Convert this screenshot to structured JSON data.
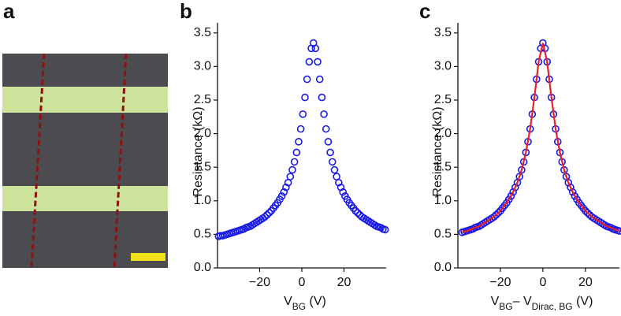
{
  "image_panel": {
    "label": "a"
  },
  "chart_data": [
    {
      "type": "scatter",
      "panel": "b",
      "y_label": "Resistance (kΩ)",
      "x_label_parts": [
        "V",
        "BG",
        " (V)"
      ],
      "xlim": [
        -40,
        40
      ],
      "xticks": [
        {
          "value": -20,
          "label": "−20"
        },
        0,
        20
      ],
      "ylim": [
        0,
        3.65
      ],
      "yticks": [
        {
          "value": 0,
          "label": "0.0"
        },
        0.5,
        {
          "value": 1,
          "label": "1.0"
        },
        1.5,
        {
          "value": 2,
          "label": "2.0"
        },
        2.5,
        {
          "value": 3,
          "label": "3.0"
        },
        3.5
      ],
      "series": [
        {
          "color": "#1a1ae6",
          "mode": "markers",
          "x": [
            -39.5,
            -38.5,
            -37.5,
            -36.5,
            -35.5,
            -34.5,
            -33.5,
            -32.5,
            -31.5,
            -30.5,
            -29.5,
            -28.5,
            -27.5,
            -26.5,
            -25.5,
            -24.5,
            -23.5,
            -22.5,
            -21.5,
            -20.5,
            -19.5,
            -18.5,
            -17.5,
            -16.5,
            -15.5,
            -14.5,
            -13.5,
            -12.5,
            -11.5,
            -10.5,
            -9.5,
            -8.5,
            -7.5,
            -6.5,
            -5.5,
            -4.5,
            -3.5,
            -2.5,
            -1.5,
            -0.5,
            0.5,
            1.5,
            2.5,
            3.5,
            4.5,
            5.5,
            6.5,
            7.5,
            8.5,
            9.5,
            10.5,
            11.5,
            12.5,
            13.5,
            14.5,
            15.5,
            16.5,
            17.5,
            18.5,
            19.5,
            20.5,
            21.5,
            22.5,
            23.5,
            24.5,
            25.5,
            26.5,
            27.5,
            28.5,
            29.5,
            30.5,
            31.5,
            32.5,
            33.5,
            34.5,
            35.5,
            36.5,
            37.5,
            38.5,
            39.5
          ],
          "values": [
            0.47,
            0.48,
            0.48,
            0.49,
            0.5,
            0.51,
            0.52,
            0.53,
            0.54,
            0.55,
            0.56,
            0.57,
            0.58,
            0.6,
            0.61,
            0.62,
            0.64,
            0.66,
            0.68,
            0.7,
            0.72,
            0.74,
            0.76,
            0.79,
            0.82,
            0.85,
            0.89,
            0.93,
            0.97,
            1.02,
            1.07,
            1.13,
            1.2,
            1.27,
            1.36,
            1.46,
            1.58,
            1.72,
            1.88,
            2.07,
            2.29,
            2.54,
            2.81,
            3.07,
            3.27,
            3.35,
            3.27,
            3.07,
            2.81,
            2.54,
            2.29,
            2.07,
            1.88,
            1.72,
            1.58,
            1.46,
            1.36,
            1.27,
            1.2,
            1.13,
            1.07,
            1.02,
            0.97,
            0.93,
            0.89,
            0.85,
            0.82,
            0.79,
            0.76,
            0.74,
            0.72,
            0.7,
            0.68,
            0.66,
            0.64,
            0.62,
            0.61,
            0.6,
            0.58,
            0.57
          ]
        }
      ]
    },
    {
      "type": "scatter",
      "panel": "c",
      "y_label": "Resistance (kΩ)",
      "x_label_parts": [
        "V",
        "BG",
        "– V",
        "Dirac, BG",
        " (V)"
      ],
      "xlim": [
        -40,
        36
      ],
      "xticks": [
        {
          "value": -20,
          "label": "−20"
        },
        0,
        20
      ],
      "ylim": [
        0,
        3.65
      ],
      "yticks": [
        {
          "value": 0,
          "label": "0.0"
        },
        0.5,
        {
          "value": 1,
          "label": "1.0"
        },
        1.5,
        {
          "value": 2,
          "label": "2.0"
        },
        2.5,
        {
          "value": 3,
          "label": "3.0"
        },
        3.5
      ],
      "series": [
        {
          "color": "#1a1ae6",
          "mode": "markers",
          "x": [
            -38,
            -37,
            -36,
            -35,
            -34,
            -33,
            -32,
            -31,
            -30,
            -29,
            -28,
            -27,
            -26,
            -25,
            -24,
            -23,
            -22,
            -21,
            -20,
            -19,
            -18,
            -17,
            -16,
            -15,
            -14,
            -13,
            -12,
            -11,
            -10,
            -9,
            -8,
            -7,
            -6,
            -5,
            -4,
            -3,
            -2,
            -1,
            0,
            1,
            2,
            3,
            4,
            5,
            6,
            7,
            8,
            9,
            10,
            11,
            12,
            13,
            14,
            15,
            16,
            17,
            18,
            19,
            20,
            21,
            22,
            23,
            24,
            25,
            26,
            27,
            28,
            29,
            30,
            31,
            32,
            33,
            34,
            35,
            36
          ],
          "values": [
            0.53,
            0.54,
            0.55,
            0.56,
            0.57,
            0.58,
            0.6,
            0.61,
            0.62,
            0.64,
            0.66,
            0.68,
            0.7,
            0.72,
            0.74,
            0.76,
            0.79,
            0.82,
            0.85,
            0.89,
            0.93,
            0.97,
            1.02,
            1.07,
            1.13,
            1.2,
            1.27,
            1.36,
            1.46,
            1.58,
            1.72,
            1.88,
            2.07,
            2.29,
            2.54,
            2.81,
            3.07,
            3.27,
            3.35,
            3.27,
            3.07,
            2.81,
            2.54,
            2.29,
            2.07,
            1.88,
            1.72,
            1.58,
            1.46,
            1.36,
            1.27,
            1.2,
            1.13,
            1.07,
            1.02,
            0.97,
            0.93,
            0.89,
            0.85,
            0.82,
            0.79,
            0.76,
            0.74,
            0.72,
            0.7,
            0.68,
            0.66,
            0.64,
            0.62,
            0.61,
            0.6,
            0.58,
            0.57,
            0.56,
            0.55
          ]
        },
        {
          "color": "#e8202a",
          "mode": "line",
          "x": [
            -38,
            -36,
            -34,
            -32,
            -30,
            -28,
            -26,
            -24,
            -22,
            -20,
            -18,
            -16,
            -14,
            -12,
            -10,
            -8,
            -6,
            -4,
            -2,
            0,
            2,
            4,
            6,
            8,
            10,
            12,
            14,
            16,
            18,
            20,
            22,
            24,
            26,
            28,
            30,
            32,
            34,
            36
          ],
          "values": [
            0.53,
            0.55,
            0.57,
            0.6,
            0.62,
            0.66,
            0.7,
            0.74,
            0.79,
            0.85,
            0.93,
            1.02,
            1.13,
            1.27,
            1.46,
            1.72,
            2.07,
            2.54,
            3.07,
            3.35,
            3.07,
            2.54,
            2.07,
            1.72,
            1.46,
            1.27,
            1.13,
            1.02,
            0.93,
            0.85,
            0.79,
            0.74,
            0.7,
            0.66,
            0.62,
            0.6,
            0.57,
            0.55
          ]
        }
      ]
    }
  ]
}
